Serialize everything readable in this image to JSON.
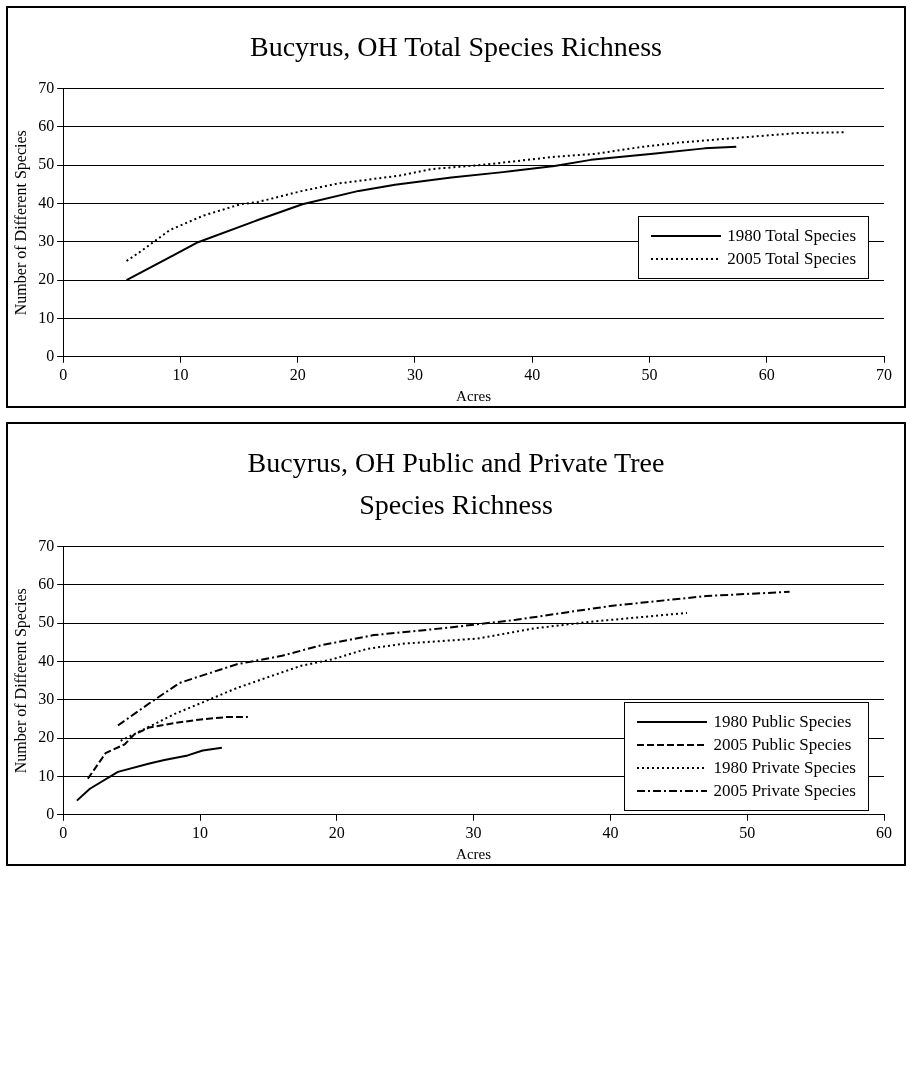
{
  "chart_data": [
    {
      "type": "line",
      "title": "Bucyrus, OH Total Species Richness",
      "xlabel": "Acres",
      "ylabel": "Number of Different Species",
      "xlim": [
        0,
        70
      ],
      "xticks": [
        0,
        10,
        20,
        30,
        40,
        50,
        60,
        70
      ],
      "ylim": [
        0,
        70
      ],
      "yticks": [
        0,
        10,
        20,
        30,
        40,
        50,
        60,
        70
      ],
      "grid": "y",
      "legend": "right",
      "marker": "none",
      "series": [
        {
          "name": "1980 Total Species",
          "color": "#000000",
          "line_style": "solid",
          "x": [
            5.4,
            11.5,
            16.6,
            20.4,
            25.2,
            28.3,
            33.1,
            37.5,
            41.9,
            45,
            50.3,
            54.7,
            57.4
          ],
          "values": [
            20,
            29.9,
            35.7,
            39.8,
            43.3,
            44.9,
            46.8,
            48.2,
            49.8,
            51.4,
            53,
            54.4,
            54.8
          ]
        },
        {
          "name": "2005 Total Species",
          "color": "#000000",
          "line_style": "dotted",
          "x": [
            5.4,
            6.7,
            9.1,
            12,
            15.1,
            16.6,
            20.4,
            23.4,
            28.7,
            31.4,
            35.8,
            41.9,
            45.5,
            49.4,
            52.5,
            58.1,
            62.6,
            66.6
          ],
          "values": [
            25,
            27.7,
            33.1,
            36.9,
            39.8,
            40.4,
            43.3,
            45.2,
            47.3,
            49,
            50.1,
            52.2,
            53,
            54.8,
            55.9,
            57.3,
            58.4,
            58.6
          ]
        }
      ]
    },
    {
      "type": "line",
      "title": "Bucyrus, OH Public and Private Tree Species Richness",
      "xlabel": "Acres",
      "ylabel": "Number of Different Species",
      "xlim": [
        0,
        60
      ],
      "xticks": [
        0,
        10,
        20,
        30,
        40,
        50,
        60
      ],
      "ylim": [
        0,
        70
      ],
      "yticks": [
        0,
        10,
        20,
        30,
        40,
        50,
        60,
        70
      ],
      "grid": "y",
      "legend": "bottom right",
      "marker": "none",
      "series": [
        {
          "name": "1980 Public Species",
          "color": "#000000",
          "line_style": "solid",
          "x": [
            1,
            1.95,
            4,
            6.3,
            7.4,
            9.1,
            10.2,
            11.6
          ],
          "values": [
            3.7,
            6.8,
            11.2,
            13.4,
            14.3,
            15.5,
            16.8,
            17.5
          ]
        },
        {
          "name": "2005 Public Species",
          "color": "#000000",
          "line_style": "dashed",
          "x": [
            1.8,
            3.1,
            4.5,
            5.2,
            6.3,
            8.2,
            9.9,
            11.9,
            13.5
          ],
          "values": [
            9.4,
            16.1,
            18.4,
            21,
            22.8,
            24,
            24.8,
            25.5,
            25.5
          ]
        },
        {
          "name": "1980 Private Species",
          "color": "#000000",
          "line_style": "dotted",
          "x": [
            4.2,
            8.2,
            10.5,
            12.7,
            15.2,
            17.4,
            19.7,
            22.2,
            25,
            30.3,
            34.5,
            38.6,
            45.6
          ],
          "values": [
            19.3,
            26.4,
            29.8,
            33.1,
            36.2,
            38.9,
            40.6,
            43.3,
            44.7,
            46,
            48.7,
            50.4,
            52.7
          ]
        },
        {
          "name": "2005 Private Species",
          "color": "#000000",
          "line_style": "dashdot",
          "x": [
            4,
            6.3,
            8.5,
            9.6,
            12.7,
            16,
            18.8,
            22.7,
            27.8,
            33.1,
            40,
            47,
            53.1
          ],
          "values": [
            23.3,
            29.1,
            34.4,
            35.7,
            39.3,
            41.5,
            44.2,
            46.9,
            48.7,
            50.9,
            54.5,
            57.1,
            58.2
          ]
        }
      ]
    }
  ]
}
